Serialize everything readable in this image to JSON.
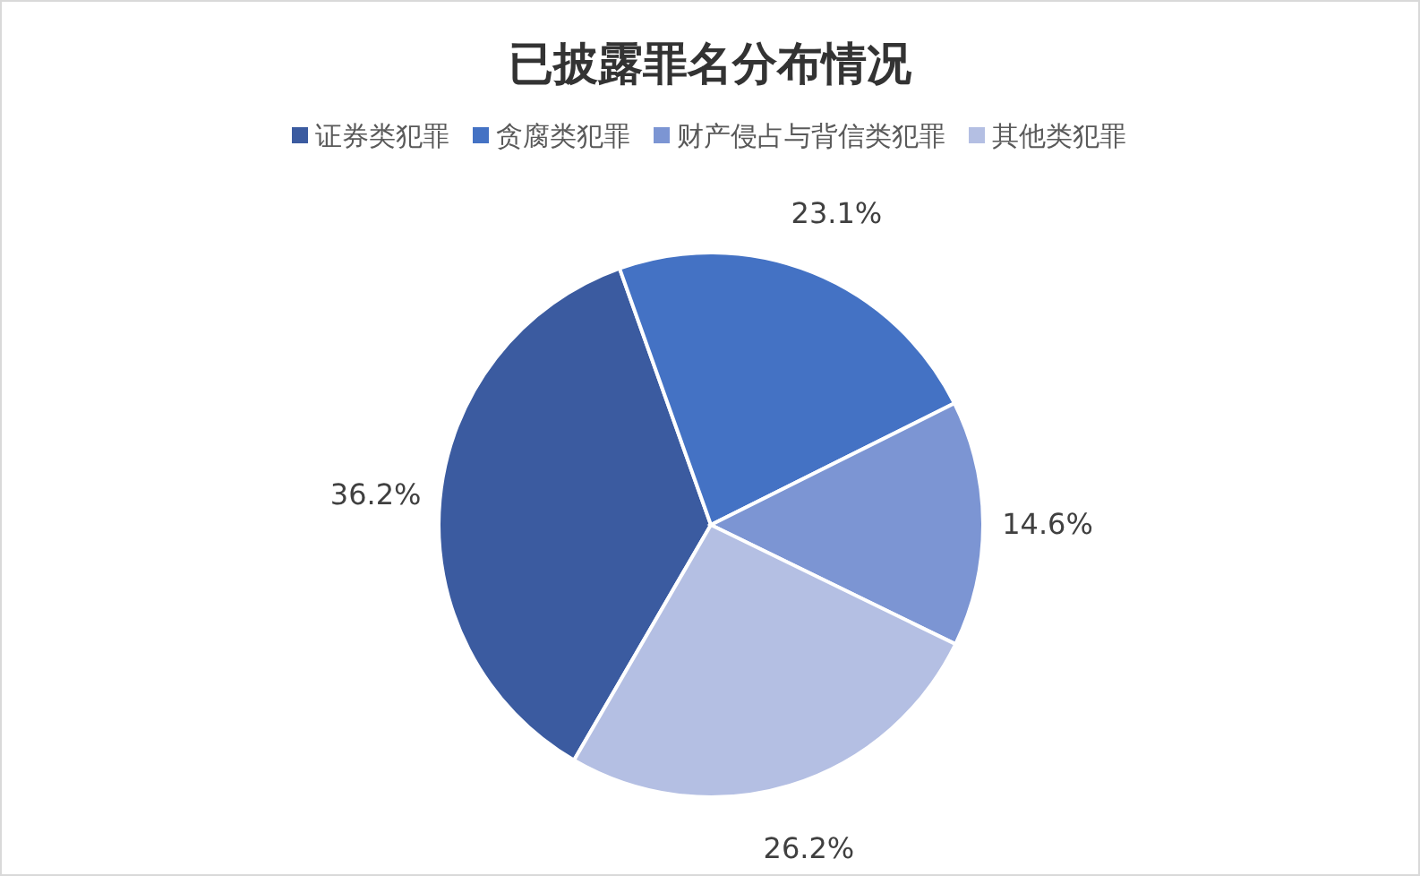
{
  "chart_data": {
    "type": "pie",
    "title": "已披露罪名分布情况",
    "categories": [
      "证券类犯罪",
      "贪腐类犯罪",
      "财产侵占与背信类犯罪",
      "其他类犯罪"
    ],
    "values": [
      36.2,
      23.1,
      14.6,
      26.2
    ],
    "value_labels": [
      "36.2%",
      "23.1%",
      "14.6%",
      "26.2%"
    ],
    "colors": [
      "#3b5ba0",
      "#4472c4",
      "#7c95d3",
      "#b4bfe3"
    ],
    "legend": "top"
  }
}
